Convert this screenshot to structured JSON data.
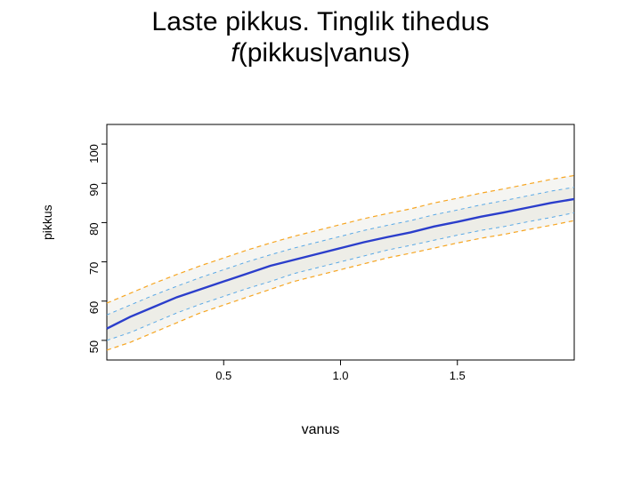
{
  "title_line1": "Laste pikkus. Tinglik tihedus",
  "title_line2_f": "f",
  "title_line2_rest": "(pikkus|vanus)",
  "xlabel": "vanus",
  "ylabel": "pikkus",
  "chart": {
    "type": "line",
    "xlim": [
      0.0,
      2.0
    ],
    "ylim": [
      45,
      105
    ],
    "xticks": [
      0.5,
      1.0,
      1.5
    ],
    "yticks": [
      50,
      60,
      70,
      80,
      90,
      100
    ],
    "background_color": "#ffffff",
    "axis_color": "#000000",
    "tick_fontsize": 13,
    "label_fontsize": 15,
    "band_fill": "#f5f5f2",
    "band_edge_color": "#e8e8e0",
    "band_outline_none": true,
    "series": [
      {
        "name": "lower_outer",
        "color": "#f6a623",
        "width": 1.2,
        "dash": "5,4",
        "x": [
          0.0,
          0.1,
          0.2,
          0.3,
          0.4,
          0.5,
          0.6,
          0.7,
          0.8,
          0.9,
          1.0,
          1.1,
          1.2,
          1.3,
          1.4,
          1.5,
          1.6,
          1.7,
          1.8,
          1.9,
          2.0
        ],
        "y": [
          47.5,
          49.5,
          52.0,
          54.5,
          57.0,
          59.0,
          61.0,
          63.0,
          65.0,
          66.5,
          68.0,
          69.5,
          71.0,
          72.2,
          73.5,
          74.8,
          76.0,
          77.0,
          78.2,
          79.3,
          80.5
        ]
      },
      {
        "name": "lower_inner",
        "color": "#5aa9e6",
        "width": 1.0,
        "dash": "4,4",
        "x": [
          0.0,
          0.1,
          0.2,
          0.3,
          0.4,
          0.5,
          0.6,
          0.7,
          0.8,
          0.9,
          1.0,
          1.1,
          1.2,
          1.3,
          1.4,
          1.5,
          1.6,
          1.7,
          1.8,
          1.9,
          2.0
        ],
        "y": [
          50.0,
          52.0,
          54.5,
          57.0,
          59.2,
          61.2,
          63.2,
          65.0,
          67.0,
          68.5,
          70.0,
          71.5,
          73.0,
          74.2,
          75.5,
          76.8,
          78.0,
          79.0,
          80.2,
          81.3,
          82.5
        ]
      },
      {
        "name": "median",
        "color": "#2b3ecb",
        "width": 2.4,
        "dash": "none",
        "x": [
          0.0,
          0.1,
          0.2,
          0.3,
          0.4,
          0.5,
          0.6,
          0.7,
          0.8,
          0.9,
          1.0,
          1.1,
          1.2,
          1.3,
          1.4,
          1.5,
          1.6,
          1.7,
          1.8,
          1.9,
          2.0
        ],
        "y": [
          53.0,
          56.0,
          58.5,
          61.0,
          63.0,
          65.0,
          67.0,
          69.0,
          70.5,
          72.0,
          73.5,
          75.0,
          76.3,
          77.5,
          79.0,
          80.2,
          81.5,
          82.6,
          83.8,
          85.0,
          86.0
        ]
      },
      {
        "name": "upper_inner",
        "color": "#5aa9e6",
        "width": 1.0,
        "dash": "4,4",
        "x": [
          0.0,
          0.1,
          0.2,
          0.3,
          0.4,
          0.5,
          0.6,
          0.7,
          0.8,
          0.9,
          1.0,
          1.1,
          1.2,
          1.3,
          1.4,
          1.5,
          1.6,
          1.7,
          1.8,
          1.9,
          2.0
        ],
        "y": [
          56.5,
          59.0,
          61.5,
          63.8,
          66.0,
          68.0,
          70.0,
          71.8,
          73.5,
          75.0,
          76.5,
          78.0,
          79.3,
          80.5,
          82.0,
          83.2,
          84.5,
          85.6,
          86.8,
          88.0,
          89.0
        ]
      },
      {
        "name": "upper_outer",
        "color": "#f6a623",
        "width": 1.2,
        "dash": "5,4",
        "x": [
          0.0,
          0.1,
          0.2,
          0.3,
          0.4,
          0.5,
          0.6,
          0.7,
          0.8,
          0.9,
          1.0,
          1.1,
          1.2,
          1.3,
          1.4,
          1.5,
          1.6,
          1.7,
          1.8,
          1.9,
          2.0
        ],
        "y": [
          59.5,
          62.0,
          64.5,
          66.8,
          69.0,
          71.0,
          73.0,
          74.8,
          76.5,
          78.0,
          79.5,
          81.0,
          82.3,
          83.5,
          85.0,
          86.2,
          87.5,
          88.6,
          89.8,
          91.0,
          92.0
        ]
      }
    ]
  }
}
